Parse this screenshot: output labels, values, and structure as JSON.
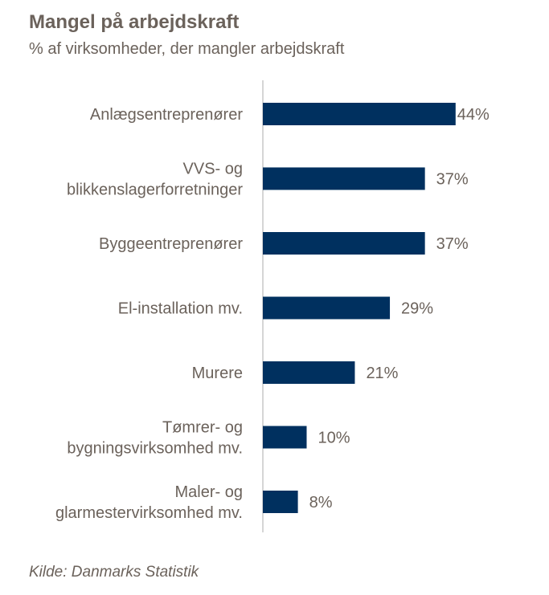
{
  "title": "Mangel på arbejdskraft",
  "subtitle": "% af virksomheder, der mangler arbejdskraft",
  "source": "Kilde: Danmarks Statistik",
  "colors": {
    "bar": "#00305f",
    "axis": "#c8c8c8",
    "text": "#6b625b"
  },
  "chart_data": {
    "type": "bar",
    "orientation": "horizontal",
    "categories": [
      [
        "Anlægsentreprenører"
      ],
      [
        "VVS- og",
        "blikkenslagerforretninger"
      ],
      [
        "Byggeentreprenører"
      ],
      [
        "El-installation mv."
      ],
      [
        "Murere"
      ],
      [
        "Tømrer- og",
        "bygningsvirksomhed mv."
      ],
      [
        "Maler- og",
        "glarmestervirksomhed mv."
      ]
    ],
    "values": [
      44,
      37,
      37,
      29,
      21,
      10,
      8
    ],
    "data_labels": [
      "44%",
      "37%",
      "37%",
      "29%",
      "21%",
      "10%",
      "8%"
    ],
    "unit": "%",
    "xlim": [
      0,
      60
    ],
    "grid": false,
    "legend": "none"
  }
}
